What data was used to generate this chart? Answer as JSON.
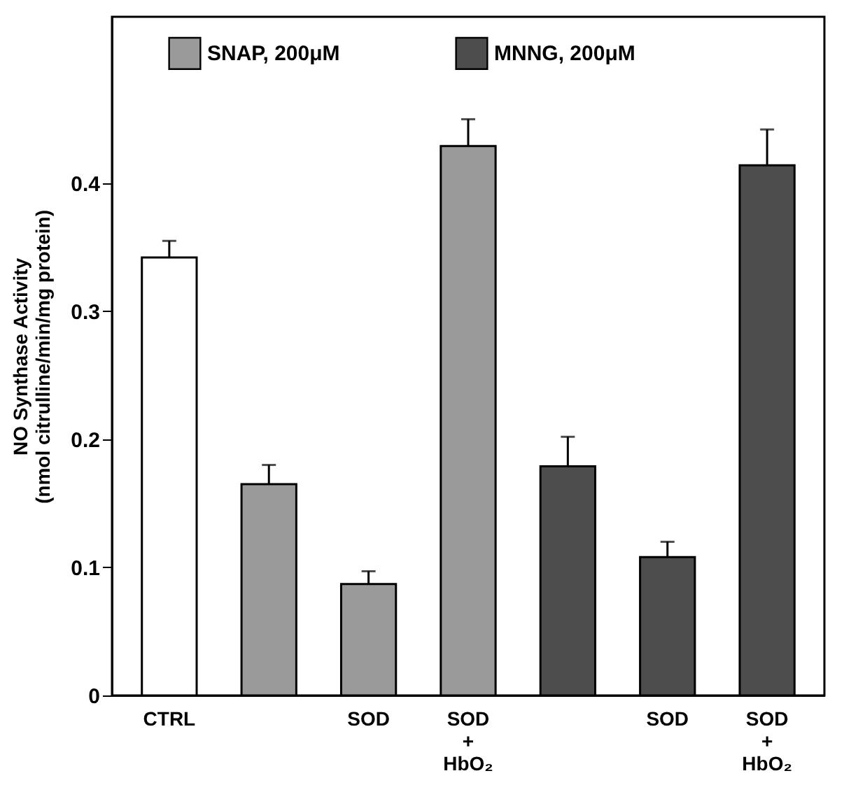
{
  "chart_data": {
    "type": "bar",
    "ylabel": "NO Synthase Activity\n(nmol citrulline/min/mg protein)",
    "categories": [
      "CTRL",
      null,
      "SOD",
      "SOD + HbO₂",
      null,
      "SOD",
      "SOD + HbO₂"
    ],
    "series": [
      {
        "color": "#ffffff",
        "values": [
          0.342,
          null,
          null,
          null,
          null,
          null,
          null
        ],
        "errors": [
          [
            0.342,
            0.355
          ],
          null,
          null,
          null,
          null,
          null,
          null
        ]
      },
      {
        "name": "SNAP, 200μM",
        "color": "#9a9a9a",
        "values": [
          null,
          0.165,
          0.087,
          0.429,
          null,
          null,
          null
        ],
        "errors": [
          null,
          [
            0.165,
            0.18
          ],
          [
            0.087,
            0.097
          ],
          [
            0.429,
            0.45
          ],
          null,
          null,
          null
        ]
      },
      {
        "name": "MNNG, 200μM",
        "color": "#4d4d4d",
        "values": [
          null,
          null,
          null,
          null,
          0.179,
          0.108,
          0.414
        ],
        "errors": [
          null,
          null,
          null,
          null,
          [
            0.179,
            0.202
          ],
          [
            0.108,
            0.12
          ],
          [
            0.414,
            0.442
          ]
        ]
      }
    ],
    "ylim": [
      0,
      0.53
    ],
    "yticks": [
      0,
      0.1,
      0.2,
      0.3,
      0.4
    ],
    "legend": "top",
    "grid": false
  }
}
